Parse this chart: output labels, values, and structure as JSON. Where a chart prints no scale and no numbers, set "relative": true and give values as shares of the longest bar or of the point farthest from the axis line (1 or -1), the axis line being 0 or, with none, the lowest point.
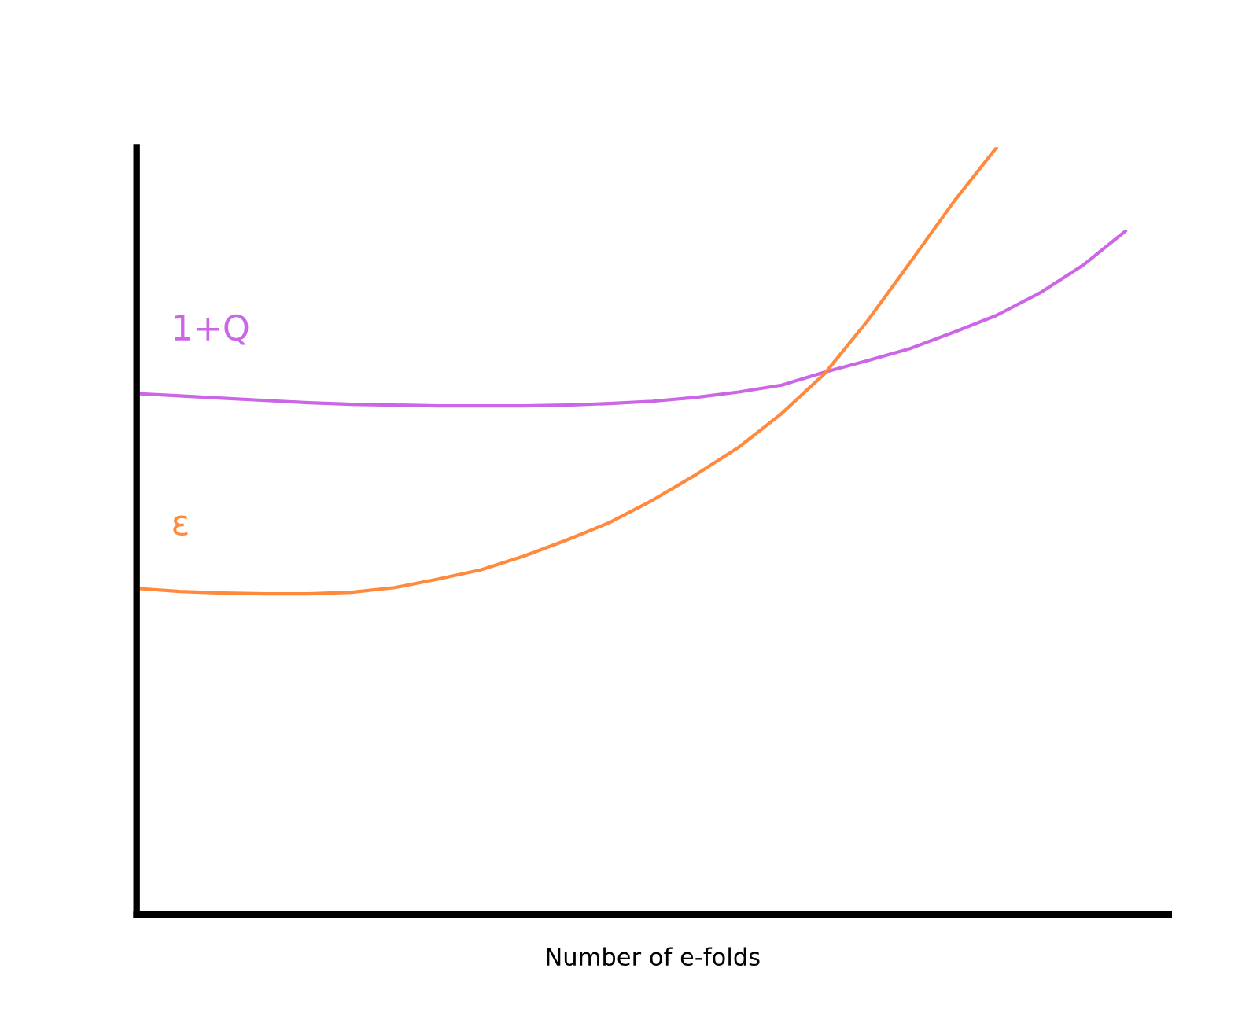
{
  "chart_data": {
    "type": "line",
    "relative": true,
    "xlabel": "Number of e-folds",
    "categories": [
      null,
      null,
      null,
      null,
      null,
      null,
      null,
      null,
      null,
      null,
      null,
      null,
      null,
      null,
      null,
      null,
      null,
      null,
      null,
      null,
      null,
      null,
      null,
      null,
      null
    ],
    "series": [
      {
        "name": "1+Q",
        "color": "#cc66e6",
        "values": [
          0.679,
          0.676,
          0.673,
          0.67,
          0.667,
          0.665,
          0.664,
          0.663,
          0.663,
          0.663,
          0.664,
          0.666,
          0.669,
          0.674,
          0.681,
          0.69,
          0.707,
          0.722,
          0.738,
          0.759,
          0.781,
          0.81,
          0.846,
          0.891,
          null
        ]
      },
      {
        "name": "ε",
        "color": "#ff8a3d",
        "values": [
          0.425,
          0.421,
          0.419,
          0.418,
          0.418,
          0.42,
          0.426,
          0.437,
          0.449,
          0.467,
          0.488,
          0.511,
          0.54,
          0.573,
          0.609,
          0.653,
          0.705,
          0.774,
          0.851,
          0.929,
          1.0,
          null,
          null,
          null,
          null
        ]
      }
    ],
    "legend": false,
    "grid": false,
    "tick_labels": false
  }
}
